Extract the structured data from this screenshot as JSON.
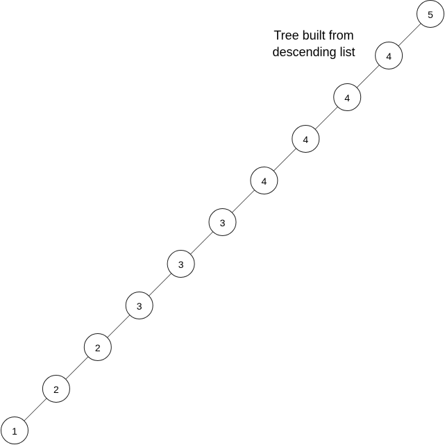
{
  "diagram": {
    "title_lines": [
      "Tree built from",
      "descending list"
    ],
    "nodes": [
      {
        "id": "n0",
        "label": "5"
      },
      {
        "id": "n1",
        "label": "4"
      },
      {
        "id": "n2",
        "label": "4"
      },
      {
        "id": "n3",
        "label": "4"
      },
      {
        "id": "n4",
        "label": "4"
      },
      {
        "id": "n5",
        "label": "3"
      },
      {
        "id": "n6",
        "label": "3"
      },
      {
        "id": "n7",
        "label": "3"
      },
      {
        "id": "n8",
        "label": "2"
      },
      {
        "id": "n9",
        "label": "2"
      },
      {
        "id": "n10",
        "label": "1"
      }
    ],
    "edges": [
      [
        "n0",
        "n1"
      ],
      [
        "n1",
        "n2"
      ],
      [
        "n2",
        "n3"
      ],
      [
        "n3",
        "n4"
      ],
      [
        "n4",
        "n5"
      ],
      [
        "n5",
        "n6"
      ],
      [
        "n6",
        "n7"
      ],
      [
        "n7",
        "n8"
      ],
      [
        "n8",
        "n9"
      ],
      [
        "n9",
        "n10"
      ]
    ]
  }
}
